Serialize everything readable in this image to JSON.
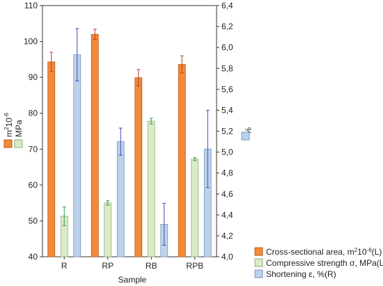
{
  "chart_data": {
    "type": "bar",
    "xlabel": "Sample",
    "categories": [
      "R",
      "RP",
      "RB",
      "RPB"
    ],
    "left_axis": {
      "ylim": [
        40,
        110
      ],
      "ticks": [
        "40",
        "50",
        "60",
        "70",
        "80",
        "90",
        "100",
        "110"
      ],
      "label": "m²10⁻⁶ MPa"
    },
    "right_axis": {
      "ylim": [
        4.0,
        6.4
      ],
      "ticks": [
        "4,0",
        "4,2",
        "4,4",
        "4,6",
        "4,8",
        "5,0",
        "5,2",
        "5,4",
        "5,6",
        "5,8",
        "6,0",
        "6,2",
        "6,4"
      ],
      "label": "%"
    },
    "series": [
      {
        "name": "Cross-sectional area, m²10⁻⁶(L)",
        "axis": "left",
        "color": "#f28a3a",
        "edge": "#b85a14",
        "error_color": "#c0392b",
        "values": [
          94.3,
          102.0,
          89.9,
          93.6
        ],
        "err": [
          2.7,
          1.4,
          2.3,
          2.4
        ]
      },
      {
        "name": "Compressive strength σ, MPa(L)",
        "axis": "left",
        "color": "#d9ebc4",
        "edge": "#8fae74",
        "error_color": "#2e9a4a",
        "values": [
          51.3,
          55.0,
          77.8,
          67.2
        ],
        "err": [
          2.6,
          0.6,
          0.8,
          0.4
        ]
      },
      {
        "name": "Shortening ε, %(R)",
        "axis": "right",
        "color": "#bcd2ea",
        "edge": "#7896bb",
        "error_color": "#3b48b8",
        "values": [
          5.93,
          5.1,
          4.31,
          5.03
        ],
        "err": [
          0.25,
          0.13,
          0.2,
          0.37
        ]
      }
    ]
  }
}
